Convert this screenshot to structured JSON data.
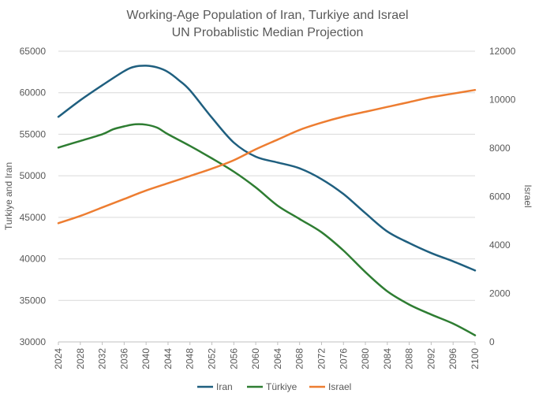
{
  "chart_data": {
    "type": "line",
    "title_line1": "Working-Age Population of Iran, Turkiye and Israel",
    "title_line2": "UN Probablistic Median Projection",
    "ylabel_left": "Turkiye and Iran",
    "ylabel_right": "Israel",
    "ylim_left": [
      30000,
      65000
    ],
    "ylim_right": [
      0,
      12000
    ],
    "yticks_left": [
      "30000",
      "35000",
      "40000",
      "45000",
      "50000",
      "55000",
      "60000",
      "65000"
    ],
    "yticks_right": [
      "0",
      "2000",
      "4000",
      "6000",
      "8000",
      "10000",
      "12000"
    ],
    "xticks": [
      "2024",
      "2028",
      "2032",
      "2036",
      "2040",
      "2044",
      "2048",
      "2052",
      "2056",
      "2060",
      "2064",
      "2068",
      "2072",
      "2076",
      "2080",
      "2084",
      "2088",
      "2092",
      "2096",
      "2100"
    ],
    "grid": true,
    "legend_position": "bottom",
    "series": [
      {
        "name": "Iran",
        "axis": "left",
        "color": "#1f5f7f",
        "x": [
          2024,
          2028,
          2032,
          2036,
          2038,
          2040,
          2042,
          2044,
          2046,
          2048,
          2052,
          2056,
          2060,
          2064,
          2068,
          2072,
          2076,
          2080,
          2084,
          2088,
          2092,
          2096,
          2100
        ],
        "y": [
          57100,
          59100,
          60900,
          62600,
          63150,
          63250,
          63050,
          62500,
          61500,
          60300,
          57000,
          54000,
          52300,
          51600,
          50900,
          49600,
          47800,
          45500,
          43300,
          41900,
          40700,
          39700,
          38600
        ]
      },
      {
        "name": "Türkiye",
        "axis": "left",
        "color": "#2e7d32",
        "x": [
          2024,
          2028,
          2032,
          2034,
          2036,
          2038,
          2040,
          2042,
          2044,
          2048,
          2052,
          2056,
          2060,
          2064,
          2068,
          2072,
          2076,
          2080,
          2084,
          2088,
          2092,
          2096,
          2100
        ],
        "y": [
          53400,
          54200,
          55000,
          55600,
          55950,
          56200,
          56150,
          55800,
          55000,
          53600,
          52100,
          50500,
          48600,
          46400,
          44800,
          43200,
          41000,
          38400,
          36100,
          34500,
          33300,
          32200,
          30800
        ]
      },
      {
        "name": "Israel",
        "axis": "right",
        "color": "#ed7d31",
        "x": [
          2024,
          2028,
          2032,
          2036,
          2040,
          2044,
          2048,
          2052,
          2056,
          2060,
          2064,
          2068,
          2072,
          2076,
          2080,
          2084,
          2088,
          2092,
          2096,
          2100
        ],
        "y": [
          4900,
          5200,
          5550,
          5900,
          6250,
          6550,
          6850,
          7150,
          7500,
          7950,
          8350,
          8750,
          9050,
          9300,
          9500,
          9700,
          9900,
          10100,
          10250,
          10400
        ]
      }
    ]
  }
}
